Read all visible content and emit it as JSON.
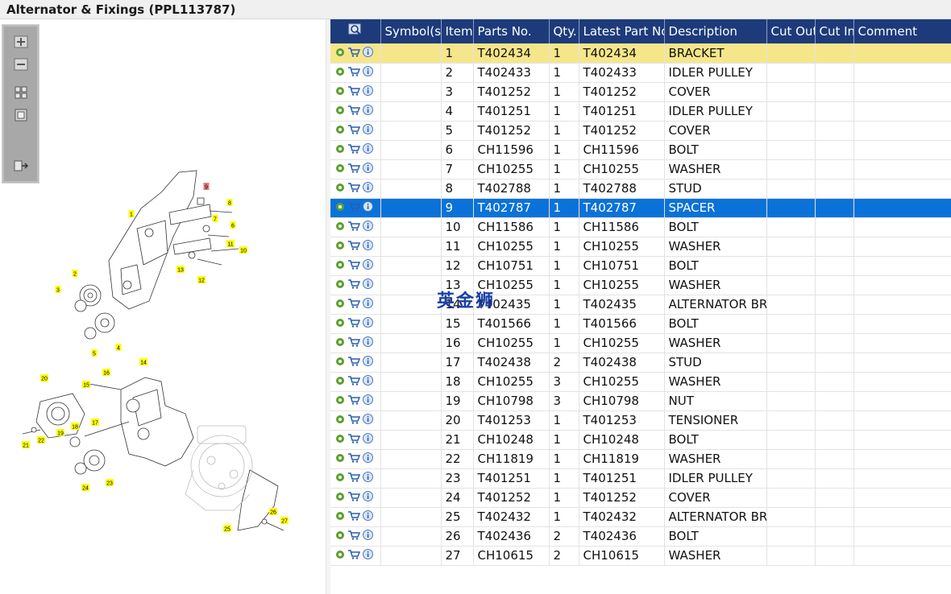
{
  "window": {
    "title": "Alternator & Fixings (PPL113787)"
  },
  "toolbox": {
    "tools": [
      {
        "name": "zoom-in-icon"
      },
      {
        "name": "zoom-out-icon"
      },
      {
        "name": "fit-icon"
      },
      {
        "name": "actual-size-icon"
      },
      {
        "name": "export-icon"
      }
    ]
  },
  "table": {
    "columns": [
      "Symbol(s)",
      "Item",
      "Parts No.",
      "Qty.",
      "Latest Part No.",
      "Description",
      "Cut Out",
      "Cut In",
      "Comment"
    ],
    "rows": [
      {
        "item": "1",
        "part": "T402434",
        "qty": "1",
        "latest": "T402434",
        "desc": "BRACKET"
      },
      {
        "item": "2",
        "part": "T402433",
        "qty": "1",
        "latest": "T402433",
        "desc": "IDLER PULLEY"
      },
      {
        "item": "3",
        "part": "T401252",
        "qty": "1",
        "latest": "T401252",
        "desc": "COVER"
      },
      {
        "item": "4",
        "part": "T401251",
        "qty": "1",
        "latest": "T401251",
        "desc": "IDLER PULLEY"
      },
      {
        "item": "5",
        "part": "T401252",
        "qty": "1",
        "latest": "T401252",
        "desc": "COVER"
      },
      {
        "item": "6",
        "part": "CH11596",
        "qty": "1",
        "latest": "CH11596",
        "desc": "BOLT"
      },
      {
        "item": "7",
        "part": "CH10255",
        "qty": "1",
        "latest": "CH10255",
        "desc": "WASHER"
      },
      {
        "item": "8",
        "part": "T402788",
        "qty": "1",
        "latest": "T402788",
        "desc": "STUD"
      },
      {
        "item": "9",
        "part": "T402787",
        "qty": "1",
        "latest": "T402787",
        "desc": "SPACER"
      },
      {
        "item": "10",
        "part": "CH11586",
        "qty": "1",
        "latest": "CH11586",
        "desc": "BOLT"
      },
      {
        "item": "11",
        "part": "CH10255",
        "qty": "1",
        "latest": "CH10255",
        "desc": "WASHER"
      },
      {
        "item": "12",
        "part": "CH10751",
        "qty": "1",
        "latest": "CH10751",
        "desc": "BOLT"
      },
      {
        "item": "13",
        "part": "CH10255",
        "qty": "1",
        "latest": "CH10255",
        "desc": "WASHER"
      },
      {
        "item": "14",
        "part": "T402435",
        "qty": "1",
        "latest": "T402435",
        "desc": "ALTERNATOR BRA"
      },
      {
        "item": "15",
        "part": "T401566",
        "qty": "1",
        "latest": "T401566",
        "desc": "BOLT"
      },
      {
        "item": "16",
        "part": "CH10255",
        "qty": "1",
        "latest": "CH10255",
        "desc": "WASHER"
      },
      {
        "item": "17",
        "part": "T402438",
        "qty": "2",
        "latest": "T402438",
        "desc": "STUD"
      },
      {
        "item": "18",
        "part": "CH10255",
        "qty": "3",
        "latest": "CH10255",
        "desc": "WASHER"
      },
      {
        "item": "19",
        "part": "CH10798",
        "qty": "3",
        "latest": "CH10798",
        "desc": "NUT"
      },
      {
        "item": "20",
        "part": "T401253",
        "qty": "1",
        "latest": "T401253",
        "desc": "TENSIONER"
      },
      {
        "item": "21",
        "part": "CH10248",
        "qty": "1",
        "latest": "CH10248",
        "desc": "BOLT"
      },
      {
        "item": "22",
        "part": "CH11819",
        "qty": "1",
        "latest": "CH11819",
        "desc": "WASHER"
      },
      {
        "item": "23",
        "part": "T401251",
        "qty": "1",
        "latest": "T401251",
        "desc": "IDLER PULLEY"
      },
      {
        "item": "24",
        "part": "T401252",
        "qty": "1",
        "latest": "T401252",
        "desc": "COVER"
      },
      {
        "item": "25",
        "part": "T402432",
        "qty": "1",
        "latest": "T402432",
        "desc": "ALTERNATOR BRA"
      },
      {
        "item": "26",
        "part": "T402436",
        "qty": "2",
        "latest": "T402436",
        "desc": "BOLT"
      },
      {
        "item": "27",
        "part": "CH10615",
        "qty": "2",
        "latest": "CH10615",
        "desc": "WASHER"
      }
    ],
    "highlighted_item": "1",
    "selected_item": "9"
  },
  "diagram": {
    "callouts": [
      "1",
      "2",
      "3",
      "4",
      "5",
      "6",
      "7",
      "8",
      "9",
      "10",
      "11",
      "12",
      "13",
      "14",
      "15",
      "16",
      "17",
      "18",
      "19",
      "20",
      "21",
      "22",
      "23",
      "24",
      "25",
      "26",
      "27"
    ],
    "highlighted_callout": "9"
  },
  "watermark": "英金狮",
  "colors": {
    "header": "#1d3b7a",
    "selected_row": "#0a72d8",
    "highlight_row": "#f6e68a",
    "callout": "#ffff00",
    "callout_active": "#e87a7a"
  }
}
